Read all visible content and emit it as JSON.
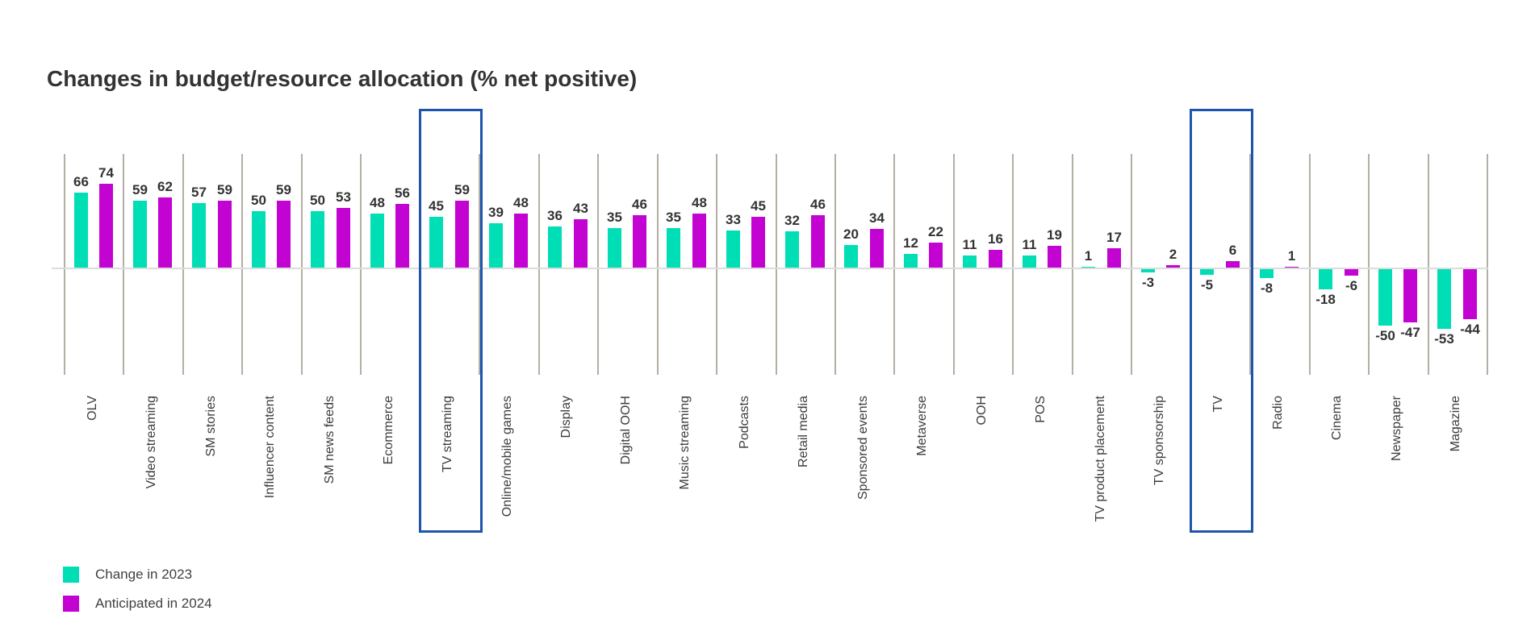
{
  "title": "Changes in budget/resource allocation (% net positive)",
  "chart_data": {
    "type": "bar",
    "categories": [
      "OLV",
      "Video streaming",
      "SM stories",
      "Influencer content",
      "SM news feeds",
      "Ecommerce",
      "TV streaming",
      "Online/mobile games",
      "Display",
      "Digital OOH",
      "Music streaming",
      "Podcasts",
      "Retail media",
      "Sponsored events",
      "Metaverse",
      "OOH",
      "POS",
      "TV product placement",
      "TV sponsorship",
      "TV",
      "Radio",
      "Cinema",
      "Newspaper",
      "Magazine"
    ],
    "series": [
      {
        "name": "Change in 2023",
        "color": "#00deb5",
        "values": [
          66,
          59,
          57,
          50,
          50,
          48,
          45,
          39,
          36,
          35,
          35,
          33,
          32,
          20,
          12,
          11,
          11,
          1,
          -3,
          -5,
          -8,
          -18,
          -50,
          -53
        ]
      },
      {
        "name": "Anticipated in 2024",
        "color": "#c203d1",
        "values": [
          74,
          62,
          59,
          59,
          53,
          56,
          59,
          48,
          43,
          46,
          48,
          45,
          46,
          34,
          22,
          16,
          19,
          17,
          2,
          6,
          1,
          -6,
          -47,
          -44
        ]
      }
    ],
    "highlighted_categories": [
      "TV streaming",
      "TV"
    ],
    "title": "Changes in budget/resource allocation (% net positive)",
    "xlabel": "",
    "ylabel": "",
    "ylim": [
      -60,
      80
    ],
    "grid": "vertical category separators only",
    "value_labels": "all bars labeled",
    "legend_position": "bottom-left",
    "category_label_rotation": -90
  },
  "legend": {
    "items": [
      {
        "label": "Change in 2023",
        "color": "#00deb5"
      },
      {
        "label": "Anticipated in 2024",
        "color": "#c203d1"
      }
    ]
  },
  "colors": {
    "series_2023": "#00deb5",
    "series_2024": "#c203d1",
    "highlight_box": "#1d54ae",
    "separator_line": "#b3afa4",
    "zero_line": "#dcdcdc",
    "title_text": "#333333",
    "value_label_text": "#333333",
    "category_label_text": "#3c3c3c",
    "background": "#ffffff"
  }
}
